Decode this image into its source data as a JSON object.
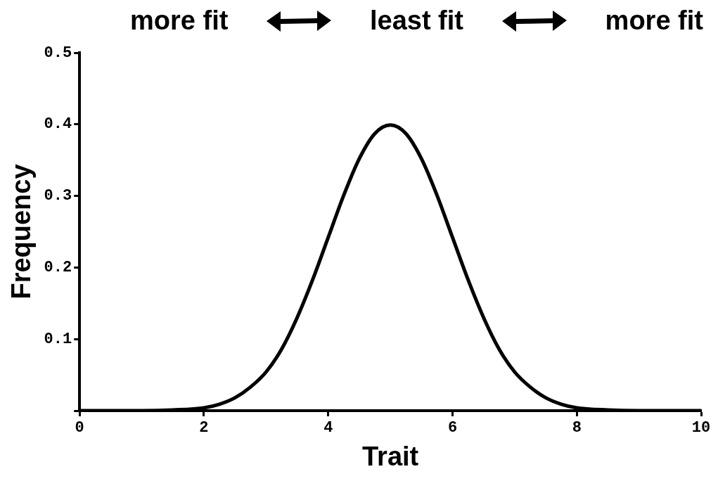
{
  "chart_data": {
    "type": "line",
    "xlabel": "Trait",
    "ylabel": "Frequency",
    "annotations": [
      "more fit",
      "least fit",
      "more fit"
    ],
    "x": [
      0,
      1,
      1.5,
      2,
      2.25,
      2.5,
      2.75,
      3,
      3.25,
      3.5,
      3.75,
      4,
      4.25,
      4.5,
      4.75,
      5,
      5.25,
      5.5,
      5.75,
      6,
      6.25,
      6.5,
      6.75,
      7,
      7.25,
      7.5,
      7.75,
      8,
      8.5,
      9,
      10
    ],
    "series": [
      {
        "color": "#000000",
        "values": [
          0,
          0,
          0.001,
          0.004,
          0.009,
          0.018,
          0.033,
          0.054,
          0.086,
          0.13,
          0.183,
          0.242,
          0.301,
          0.352,
          0.387,
          0.399,
          0.387,
          0.352,
          0.301,
          0.242,
          0.183,
          0.13,
          0.086,
          0.054,
          0.033,
          0.018,
          0.009,
          0.004,
          0.001,
          0,
          0
        ]
      }
    ],
    "xlim": [
      0,
      10
    ],
    "xticks": [
      0,
      2,
      4,
      6,
      8,
      10
    ],
    "ylim": [
      0,
      0.5
    ],
    "yticks": [
      {
        "value": 0,
        "label": null
      },
      0.1,
      0.2,
      0.3,
      0.4,
      0.5
    ],
    "grid": false,
    "legend": false,
    "marker": "none",
    "line_style": "solid"
  }
}
